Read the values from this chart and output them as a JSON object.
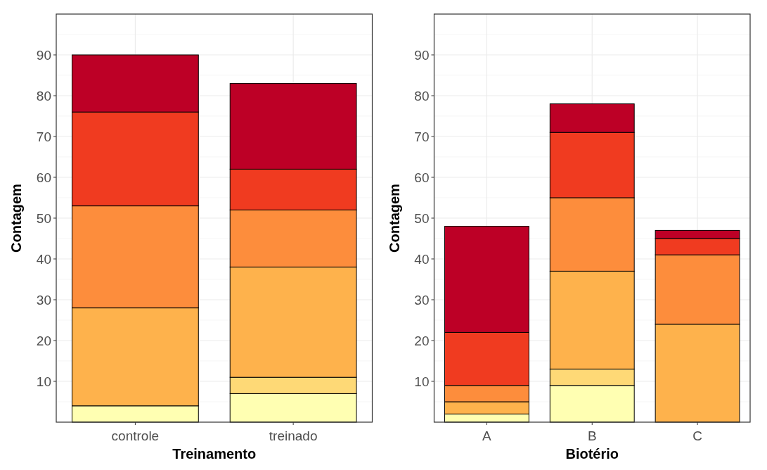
{
  "chart_data": [
    {
      "type": "bar",
      "stacked": true,
      "xlabel": "Treinamento",
      "ylabel": "Contagem",
      "categories": [
        "controle",
        "treinado"
      ],
      "ylim": [
        0,
        100
      ],
      "yticks": [
        10,
        20,
        30,
        40,
        50,
        60,
        70,
        80,
        90
      ],
      "grid": true,
      "series": [
        {
          "color": "#ffffb2",
          "values": [
            4,
            7
          ]
        },
        {
          "color": "#fed976",
          "values": [
            0,
            4
          ]
        },
        {
          "color": "#feb24c",
          "values": [
            24,
            27
          ]
        },
        {
          "color": "#fd8d3c",
          "values": [
            25,
            14
          ]
        },
        {
          "color": "#f03b20",
          "values": [
            23,
            10
          ]
        },
        {
          "color": "#bd0026",
          "values": [
            14,
            21
          ]
        }
      ]
    },
    {
      "type": "bar",
      "stacked": true,
      "xlabel": "Biotério",
      "ylabel": "Contagem",
      "categories": [
        "A",
        "B",
        "C"
      ],
      "ylim": [
        0,
        100
      ],
      "yticks": [
        10,
        20,
        30,
        40,
        50,
        60,
        70,
        80,
        90
      ],
      "grid": true,
      "series": [
        {
          "color": "#ffffb2",
          "values": [
            2,
            9,
            0
          ]
        },
        {
          "color": "#fed976",
          "values": [
            0,
            4,
            0
          ]
        },
        {
          "color": "#feb24c",
          "values": [
            3,
            24,
            24
          ]
        },
        {
          "color": "#fd8d3c",
          "values": [
            4,
            18,
            17
          ]
        },
        {
          "color": "#f03b20",
          "values": [
            13,
            16,
            4
          ]
        },
        {
          "color": "#bd0026",
          "values": [
            26,
            7,
            2
          ]
        }
      ]
    }
  ]
}
